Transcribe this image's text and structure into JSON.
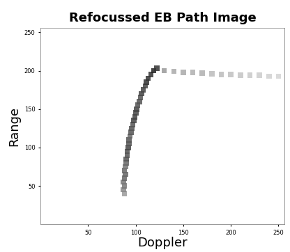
{
  "chart_data": {
    "type": "scatter",
    "title": "Refocussed EB Path Image",
    "x_label": "Doppler",
    "y_label": "Range",
    "x": [
      88,
      87,
      88,
      87,
      88,
      89,
      88,
      89,
      90,
      90,
      91,
      91,
      92,
      93,
      93,
      94,
      95,
      96,
      97,
      98,
      99,
      100,
      101,
      102,
      104,
      105,
      106,
      108,
      110,
      111,
      113,
      116,
      119,
      122,
      130,
      140,
      150,
      160,
      170,
      180,
      190,
      200,
      210,
      220,
      230,
      240,
      250
    ],
    "y": [
      40,
      45,
      50,
      55,
      60,
      65,
      70,
      75,
      80,
      85,
      90,
      95,
      100,
      105,
      110,
      115,
      120,
      125,
      130,
      135,
      140,
      145,
      150,
      155,
      160,
      165,
      170,
      175,
      180,
      185,
      190,
      195,
      200,
      203,
      200,
      199,
      198,
      198,
      197,
      196,
      195,
      195,
      194,
      194,
      194,
      193,
      193
    ],
    "colors": [
      "#9a9a9a",
      "#888888",
      "#777777",
      "#777777",
      "#666666",
      "#666666",
      "#666666",
      "#777777",
      "#666666",
      "#555555",
      "#555555",
      "#555555",
      "#444444",
      "#555555",
      "#555555",
      "#666666",
      "#555555",
      "#555555",
      "#555555",
      "#444444",
      "#444444",
      "#444444",
      "#444444",
      "#555555",
      "#555555",
      "#555555",
      "#444444",
      "#444444",
      "#444444",
      "#333333",
      "#333333",
      "#333333",
      "#222222",
      "#333333",
      "#999999",
      "#aaaaaa",
      "#aaaaaa",
      "#b0b0b0",
      "#b0b0b0",
      "#bbbbbb",
      "#bbbbbb",
      "#c0c0c0",
      "#c4c4c4",
      "#c8c8c8",
      "#cccccc",
      "#d0d0d0",
      "#d4d4d4"
    ],
    "marker": "s",
    "xlim": [
      0,
      256
    ],
    "ylim": [
      0,
      256
    ],
    "xticks": [
      50,
      100,
      150,
      200,
      250
    ],
    "yticks": [
      50,
      100,
      150,
      200,
      250
    ],
    "grid": false
  }
}
